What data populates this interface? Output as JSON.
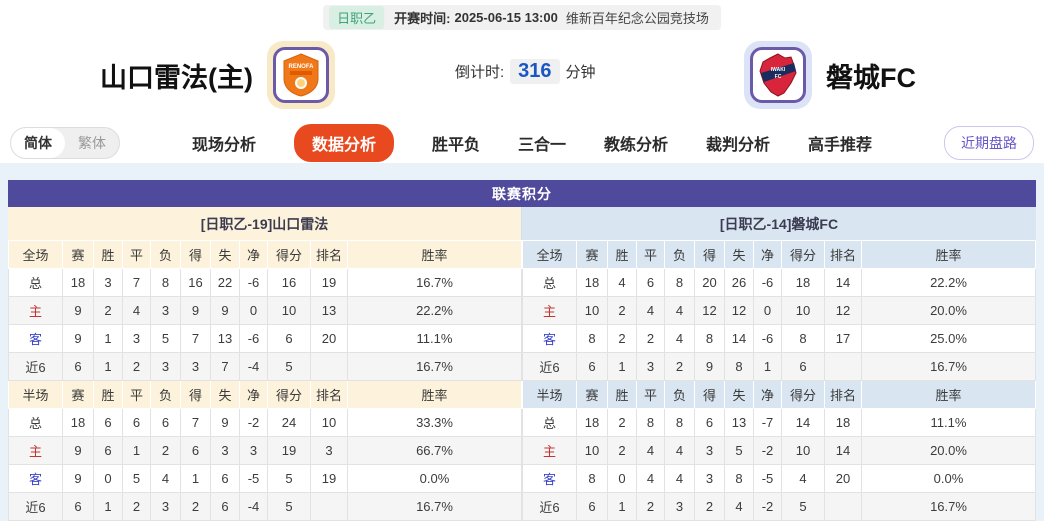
{
  "match_bar": {
    "league_badge": "日职乙",
    "kickoff_label": "开赛时间:",
    "kickoff_time": "2025-06-15 13:00",
    "venue": "维新百年纪念公园竞技场"
  },
  "teams": {
    "home": {
      "name": "山口雷法(主)",
      "logo_text": "RENOFA"
    },
    "away": {
      "name": "磐城FC",
      "logo_text": "IWAKI FC"
    },
    "countdown": {
      "label": "倒计时:",
      "value": "316",
      "unit": "分钟"
    }
  },
  "nav": {
    "lang": [
      {
        "label": "简体",
        "active": true
      },
      {
        "label": "繁体",
        "active": false
      }
    ],
    "tabs": [
      {
        "label": "现场分析",
        "active": false
      },
      {
        "label": "数据分析",
        "active": true
      },
      {
        "label": "胜平负",
        "active": false
      },
      {
        "label": "三合一",
        "active": false
      },
      {
        "label": "教练分析",
        "active": false
      },
      {
        "label": "裁判分析",
        "active": false
      },
      {
        "label": "高手推荐",
        "active": false
      }
    ],
    "recent_button": "近期盘路"
  },
  "colors": {
    "accent_orange": "#e8491f",
    "header_purple": "#504a9c",
    "home_cream": "#fdf3dc",
    "away_blue": "#d9e6f2",
    "home_label_red": "#c43531",
    "away_label_blue": "#3c46c8",
    "countdown_blue": "#1a56c4",
    "badge_green": "#3da379"
  },
  "league_table": {
    "title": "联赛积分",
    "home_header": "[日职乙-19]山口雷法",
    "away_header": "[日职乙-14]磐城FC",
    "stat_columns": [
      "赛",
      "胜",
      "平",
      "负",
      "得",
      "失",
      "净",
      "得分",
      "排名",
      "胜率"
    ],
    "period_full": "全场",
    "period_half": "半场",
    "home": {
      "full": [
        {
          "label": "总",
          "values": [
            "18",
            "3",
            "7",
            "8",
            "16",
            "22",
            "-6",
            "16",
            "19",
            "16.7%"
          ]
        },
        {
          "label": "主",
          "values": [
            "9",
            "2",
            "4",
            "3",
            "9",
            "9",
            "0",
            "10",
            "13",
            "22.2%"
          ]
        },
        {
          "label": "客",
          "values": [
            "9",
            "1",
            "3",
            "5",
            "7",
            "13",
            "-6",
            "6",
            "20",
            "11.1%"
          ]
        },
        {
          "label": "近6",
          "values": [
            "6",
            "1",
            "2",
            "3",
            "3",
            "7",
            "-4",
            "5",
            "",
            "16.7%"
          ]
        }
      ],
      "half": [
        {
          "label": "总",
          "values": [
            "18",
            "6",
            "6",
            "6",
            "7",
            "9",
            "-2",
            "24",
            "10",
            "33.3%"
          ]
        },
        {
          "label": "主",
          "values": [
            "9",
            "6",
            "1",
            "2",
            "6",
            "3",
            "3",
            "19",
            "3",
            "66.7%"
          ]
        },
        {
          "label": "客",
          "values": [
            "9",
            "0",
            "5",
            "4",
            "1",
            "6",
            "-5",
            "5",
            "19",
            "0.0%"
          ]
        },
        {
          "label": "近6",
          "values": [
            "6",
            "1",
            "2",
            "3",
            "2",
            "6",
            "-4",
            "5",
            "",
            "16.7%"
          ]
        }
      ]
    },
    "away": {
      "full": [
        {
          "label": "总",
          "values": [
            "18",
            "4",
            "6",
            "8",
            "20",
            "26",
            "-6",
            "18",
            "14",
            "22.2%"
          ]
        },
        {
          "label": "主",
          "values": [
            "10",
            "2",
            "4",
            "4",
            "12",
            "12",
            "0",
            "10",
            "12",
            "20.0%"
          ]
        },
        {
          "label": "客",
          "values": [
            "8",
            "2",
            "2",
            "4",
            "8",
            "14",
            "-6",
            "8",
            "17",
            "25.0%"
          ]
        },
        {
          "label": "近6",
          "values": [
            "6",
            "1",
            "3",
            "2",
            "9",
            "8",
            "1",
            "6",
            "",
            "16.7%"
          ]
        }
      ],
      "half": [
        {
          "label": "总",
          "values": [
            "18",
            "2",
            "8",
            "8",
            "6",
            "13",
            "-7",
            "14",
            "18",
            "11.1%"
          ]
        },
        {
          "label": "主",
          "values": [
            "10",
            "2",
            "4",
            "4",
            "3",
            "5",
            "-2",
            "10",
            "14",
            "20.0%"
          ]
        },
        {
          "label": "客",
          "values": [
            "8",
            "0",
            "4",
            "4",
            "3",
            "8",
            "-5",
            "4",
            "20",
            "0.0%"
          ]
        },
        {
          "label": "近6",
          "values": [
            "6",
            "1",
            "2",
            "3",
            "2",
            "4",
            "-2",
            "5",
            "",
            "16.7%"
          ]
        }
      ]
    }
  }
}
